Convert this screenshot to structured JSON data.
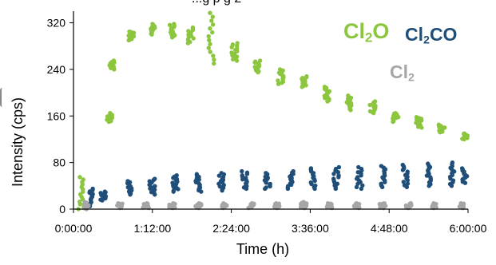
{
  "header_fragment": "...g   p             g               2",
  "chart_data": {
    "type": "scatter",
    "title": "",
    "xlabel": "Time (h)",
    "ylabel": "Intensity (cps)",
    "x_ticks": [
      "0:00:00",
      "1:12:00",
      "2:24:00",
      "3:36:00",
      "4:48:00",
      "6:00:00"
    ],
    "y_ticks": [
      "0",
      "80",
      "160",
      "240",
      "320"
    ],
    "xlim_hours": [
      0,
      6
    ],
    "ylim": [
      0,
      340
    ],
    "grid": false,
    "legend_placement": "top-right (inside plot)",
    "series": [
      {
        "name": "Cl2O",
        "legend_main": "Cl",
        "legend_sub": "2",
        "legend_tail": "O",
        "color": "#8cc63f",
        "clusters": [
          {
            "x": 0.12,
            "y_range": [
              0,
              55
            ]
          },
          {
            "x": 0.55,
            "y_range": [
              150,
              165
            ]
          },
          {
            "x": 0.58,
            "y_range": [
              240,
              255
            ]
          },
          {
            "x": 0.88,
            "y_range": [
              290,
              305
            ]
          },
          {
            "x": 1.2,
            "y_range": [
              300,
              318
            ]
          },
          {
            "x": 1.5,
            "y_range": [
              295,
              318
            ]
          },
          {
            "x": 1.78,
            "y_range": [
              285,
              312
            ]
          },
          {
            "x": 2.1,
            "y_range": [
              250,
              337
            ]
          },
          {
            "x": 2.45,
            "y_range": [
              255,
              285
            ]
          },
          {
            "x": 2.8,
            "y_range": [
              235,
              255
            ]
          },
          {
            "x": 3.15,
            "y_range": [
              215,
              240
            ]
          },
          {
            "x": 3.5,
            "y_range": [
              210,
              228
            ]
          },
          {
            "x": 3.85,
            "y_range": [
              185,
              210
            ]
          },
          {
            "x": 4.2,
            "y_range": [
              170,
              195
            ]
          },
          {
            "x": 4.55,
            "y_range": [
              165,
              185
            ]
          },
          {
            "x": 4.9,
            "y_range": [
              150,
              165
            ]
          },
          {
            "x": 5.25,
            "y_range": [
              140,
              158
            ]
          },
          {
            "x": 5.6,
            "y_range": [
              132,
              145
            ]
          },
          {
            "x": 5.95,
            "y_range": [
              120,
              130
            ]
          }
        ]
      },
      {
        "name": "Cl2CO",
        "legend_main": "Cl",
        "legend_sub": "2",
        "legend_tail": "CO",
        "color": "#1f4e79",
        "clusters": [
          {
            "x": 0.25,
            "y_range": [
              5,
              35
            ]
          },
          {
            "x": 0.45,
            "y_range": [
              15,
              30
            ]
          },
          {
            "x": 0.85,
            "y_range": [
              25,
              48
            ]
          },
          {
            "x": 1.2,
            "y_range": [
              25,
              52
            ]
          },
          {
            "x": 1.55,
            "y_range": [
              30,
              58
            ]
          },
          {
            "x": 1.9,
            "y_range": [
              30,
              60
            ]
          },
          {
            "x": 2.25,
            "y_range": [
              32,
              62
            ]
          },
          {
            "x": 2.6,
            "y_range": [
              35,
              65
            ]
          },
          {
            "x": 2.95,
            "y_range": [
              35,
              62
            ]
          },
          {
            "x": 3.3,
            "y_range": [
              35,
              65
            ]
          },
          {
            "x": 3.65,
            "y_range": [
              35,
              70
            ]
          },
          {
            "x": 4.0,
            "y_range": [
              35,
              72
            ]
          },
          {
            "x": 4.35,
            "y_range": [
              35,
              72
            ]
          },
          {
            "x": 4.7,
            "y_range": [
              38,
              74
            ]
          },
          {
            "x": 5.05,
            "y_range": [
              38,
              76
            ]
          },
          {
            "x": 5.4,
            "y_range": [
              40,
              78
            ]
          },
          {
            "x": 5.75,
            "y_range": [
              40,
              80
            ]
          },
          {
            "x": 5.95,
            "y_range": [
              45,
              70
            ]
          }
        ]
      },
      {
        "name": "Cl2",
        "legend_main": "Cl",
        "legend_sub": "2",
        "legend_tail": "",
        "color": "#a6a6a6",
        "clusters": [
          {
            "x": 0.2,
            "y_range": [
              0,
              12
            ]
          },
          {
            "x": 0.7,
            "y_range": [
              2,
              10
            ]
          },
          {
            "x": 1.1,
            "y_range": [
              2,
              10
            ]
          },
          {
            "x": 1.5,
            "y_range": [
              2,
              10
            ]
          },
          {
            "x": 1.9,
            "y_range": [
              2,
              10
            ]
          },
          {
            "x": 2.3,
            "y_range": [
              2,
              10
            ]
          },
          {
            "x": 2.7,
            "y_range": [
              2,
              10
            ]
          },
          {
            "x": 3.1,
            "y_range": [
              2,
              10
            ]
          },
          {
            "x": 3.5,
            "y_range": [
              2,
              12
            ]
          },
          {
            "x": 3.9,
            "y_range": [
              2,
              10
            ]
          },
          {
            "x": 4.3,
            "y_range": [
              2,
              10
            ]
          },
          {
            "x": 4.7,
            "y_range": [
              2,
              10
            ]
          },
          {
            "x": 5.1,
            "y_range": [
              2,
              10
            ]
          },
          {
            "x": 5.5,
            "y_range": [
              2,
              10
            ]
          },
          {
            "x": 5.9,
            "y_range": [
              2,
              10
            ]
          }
        ]
      }
    ]
  }
}
